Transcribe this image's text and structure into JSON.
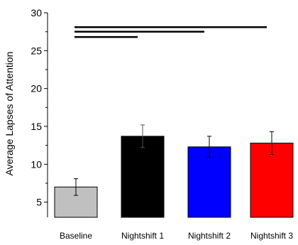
{
  "chart_data": {
    "type": "bar",
    "ylabel": "Average Lapses of Attention",
    "xlabel": "",
    "ylim": [
      3,
      30
    ],
    "yticks": [
      5,
      10,
      15,
      20,
      25,
      30
    ],
    "grid": false,
    "categories": [
      "Baseline",
      "Nightshift 1",
      "Nightshift 2",
      "Nightshift 3"
    ],
    "values": [
      7.0,
      13.7,
      12.3,
      12.8
    ],
    "error": [
      1.1,
      1.5,
      1.4,
      1.5
    ],
    "colors": [
      "#c0c0c0",
      "#000000",
      "#0000ff",
      "#ff0000"
    ],
    "significance_lines": [
      {
        "from": "Baseline",
        "to": "Nightshift 1",
        "y": 26.8
      },
      {
        "from": "Baseline",
        "to": "Nightshift 2",
        "y": 27.5
      },
      {
        "from": "Baseline",
        "to": "Nightshift 3",
        "y": 28.1
      }
    ]
  }
}
